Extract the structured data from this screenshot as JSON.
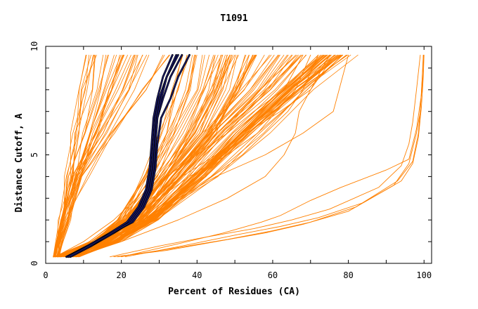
{
  "chart_data": {
    "type": "line",
    "title": "T1091",
    "xlabel": "Percent of Residues (CA)",
    "ylabel": "Distance Cutoff, A",
    "xlim": [
      0,
      102
    ],
    "ylim": [
      0,
      10
    ],
    "x_ticks": [
      "0",
      "20",
      "40",
      "60",
      "80",
      "100"
    ],
    "y_ticks": [
      "0",
      "5",
      "10"
    ],
    "grid": false,
    "legend": "none",
    "colors": {
      "background_models": "#ff8000",
      "highlighted_models": "#1a1a6e",
      "highlight_outline": "#000000"
    },
    "background_groups": [
      {
        "y": [
          0.3,
          2,
          4,
          6,
          8,
          9.6
        ],
        "base": [
          2.5,
          4,
          5.5,
          7,
          8.5,
          10
        ],
        "spread": [
          0,
          2,
          5,
          12,
          18,
          22
        ],
        "count": 36
      },
      {
        "y": [
          0.3,
          1,
          2,
          4,
          6,
          8,
          9.6
        ],
        "base": [
          2.5,
          12,
          19,
          25,
          30,
          34,
          36
        ],
        "spread": [
          1,
          3,
          5,
          10,
          15,
          18,
          20
        ],
        "count": 46
      },
      {
        "y": [
          0.3,
          1,
          2,
          4,
          6,
          8,
          9.6
        ],
        "base": [
          6,
          16,
          24,
          32,
          42,
          52,
          58
        ],
        "spread": [
          2,
          3,
          5,
          10,
          12,
          16,
          22
        ],
        "count": 46
      },
      {
        "y": [
          0.3,
          2,
          4,
          6,
          8,
          9.6
        ],
        "base": [
          5,
          26,
          40,
          50,
          62,
          72
        ],
        "spread": [
          2,
          3,
          6,
          10,
          10,
          10
        ],
        "count": 16
      }
    ],
    "series": [
      {
        "x": [
          2.5,
          12,
          20,
          26,
          32,
          40,
          48,
          55,
          63,
          68
        ],
        "y": [
          0.3,
          1,
          2,
          3,
          4,
          5,
          6,
          7,
          8,
          9.6
        ]
      },
      {
        "x": [
          3,
          14,
          22,
          30,
          38,
          48,
          56,
          61,
          66,
          70
        ],
        "y": [
          0.3,
          1,
          2,
          3,
          4,
          5,
          6,
          7,
          8,
          9.6
        ]
      },
      {
        "x": [
          4,
          13,
          21,
          28,
          36,
          45,
          53,
          62,
          70,
          75
        ],
        "y": [
          0.3,
          1,
          2,
          3,
          4,
          5,
          6,
          7,
          8,
          9.6
        ]
      },
      {
        "x": [
          5,
          18,
          26,
          35,
          45,
          58,
          68,
          76,
          80
        ],
        "y": [
          0.3,
          1,
          2,
          3,
          4,
          5,
          6,
          7,
          9.6
        ]
      },
      {
        "x": [
          2.5,
          10,
          18,
          24,
          28,
          30,
          32,
          34,
          36
        ],
        "y": [
          0.3,
          1,
          2,
          3,
          4,
          5,
          6,
          8,
          9.6
        ]
      },
      {
        "x": [
          2.5,
          14,
          28,
          36,
          44,
          52,
          58,
          64,
          68,
          72
        ],
        "y": [
          0.3,
          1,
          2,
          3,
          4,
          5,
          6,
          7,
          8,
          9.6
        ]
      },
      {
        "x": [
          4,
          20,
          35,
          48,
          58,
          63,
          66,
          67,
          70,
          74,
          78
        ],
        "y": [
          0.3,
          1,
          2,
          3,
          4,
          5,
          6,
          7,
          8,
          9,
          9.6
        ]
      },
      {
        "x": [
          17,
          30,
          42,
          55,
          65,
          75,
          88,
          94,
          96,
          97,
          98,
          99
        ],
        "y": [
          0.3,
          0.8,
          1.2,
          1.6,
          2,
          2.5,
          3.5,
          4.5,
          5.5,
          6.5,
          8,
          9.6
        ]
      },
      {
        "x": [
          18,
          32,
          45,
          58,
          68,
          80,
          92,
          96,
          98,
          99,
          99.5,
          99.8
        ],
        "y": [
          0.3,
          0.6,
          1,
          1.4,
          1.8,
          2.4,
          3.6,
          4.6,
          6,
          7,
          8.5,
          9.6
        ]
      },
      {
        "x": [
          19,
          34,
          48,
          60,
          70,
          82,
          93,
          97,
          98.5,
          99.2,
          99.6,
          99.9
        ],
        "y": [
          0.3,
          0.7,
          1.1,
          1.5,
          1.9,
          2.6,
          3.8,
          4.7,
          6,
          7.5,
          8.8,
          9.6
        ]
      },
      {
        "x": [
          20,
          35,
          47,
          57,
          62,
          70,
          78,
          90,
          96,
          98,
          99.5,
          99.8
        ],
        "y": [
          0.3,
          0.9,
          1.4,
          1.9,
          2.2,
          2.9,
          3.5,
          4.3,
          4.8,
          6.2,
          8,
          9.6
        ]
      },
      {
        "x": [
          21,
          36,
          50,
          62,
          72,
          84,
          94,
          97,
          98.5,
          99.3,
          99.8,
          100
        ],
        "y": [
          0.3,
          0.8,
          1.3,
          1.7,
          2.1,
          2.8,
          3.8,
          4.6,
          5.8,
          7.2,
          8.6,
          9.6
        ]
      }
    ],
    "highlight_series": [
      {
        "x": [
          5.5,
          11,
          17,
          22,
          25,
          27,
          28,
          28.5,
          29,
          30,
          32,
          35
        ],
        "y": [
          0.3,
          0.8,
          1.4,
          1.9,
          2.6,
          3.4,
          4.4,
          5.5,
          6.7,
          7.6,
          8.6,
          9.6
        ]
      },
      {
        "x": [
          6,
          12,
          18,
          22.5,
          25.5,
          27.5,
          28.5,
          29,
          29.5,
          31,
          33,
          36
        ],
        "y": [
          0.3,
          0.8,
          1.4,
          1.9,
          2.6,
          3.4,
          4.4,
          5.5,
          6.7,
          7.6,
          8.6,
          9.6
        ]
      },
      {
        "x": [
          5.5,
          11.5,
          17.5,
          23,
          26,
          28,
          29,
          29.5,
          30.5,
          33,
          35,
          38
        ],
        "y": [
          0.3,
          0.8,
          1.4,
          1.9,
          2.6,
          3.4,
          4.4,
          5.5,
          6.7,
          7.6,
          8.6,
          9.6
        ]
      },
      {
        "x": [
          6.5,
          12,
          17,
          21.5,
          24.5,
          26.5,
          27.5,
          28,
          28.5,
          29.5,
          31,
          33.5
        ],
        "y": [
          0.3,
          0.8,
          1.4,
          1.9,
          2.6,
          3.4,
          4.4,
          5.5,
          6.7,
          7.6,
          8.6,
          9.6
        ]
      },
      {
        "x": [
          6,
          11.5,
          17.5,
          22.5,
          25.5,
          27.5,
          28.5,
          29,
          29.5,
          30.5,
          32,
          34.5
        ],
        "y": [
          0.3,
          0.8,
          1.4,
          1.9,
          2.6,
          3.4,
          4.4,
          5.5,
          6.7,
          7.6,
          8.6,
          9.6
        ]
      }
    ]
  }
}
